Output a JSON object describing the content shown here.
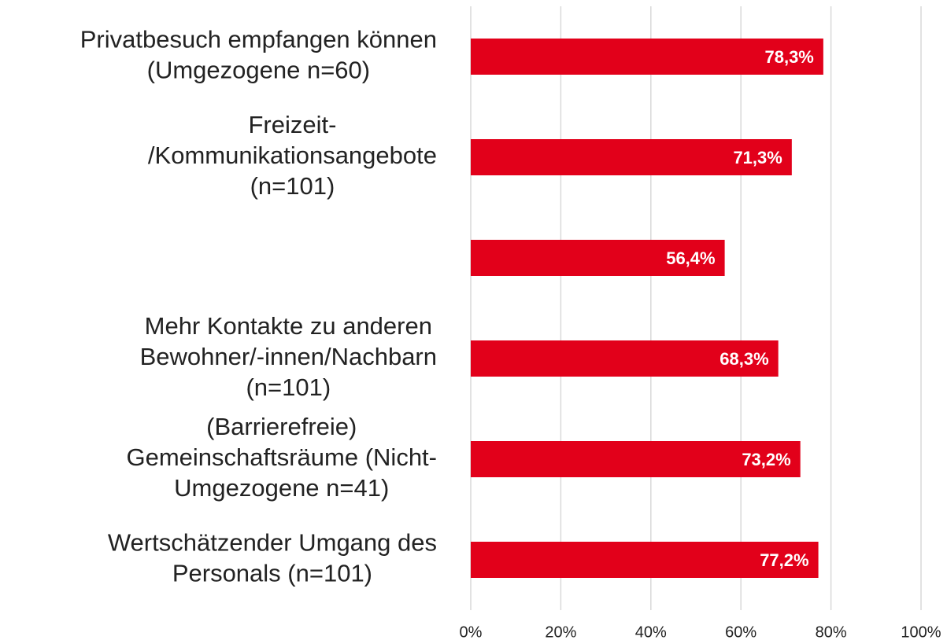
{
  "chart_data": {
    "type": "bar",
    "orientation": "horizontal",
    "categories": [
      [
        "Privatbesuch empfangen können",
        "(Umgezogene n=60)"
      ],
      [
        "Freizeit-",
        "/Kommunikationsangebote",
        "(n=101)"
      ],
      null,
      [
        "Mehr Kontakte zu anderen",
        "Bewohner/-innen/Nachbarn",
        "(n=101)"
      ],
      [
        "(Barrierefreie)",
        "Gemeinschaftsräume (Nicht-",
        "Umgezogene n=41)"
      ],
      [
        "Wertschätzender Umgang des",
        "Personals (n=101)"
      ]
    ],
    "values": [
      78.3,
      71.3,
      56.4,
      68.3,
      73.2,
      77.2
    ],
    "value_labels": [
      "78,3%",
      "71,3%",
      "56,4%",
      "68,3%",
      "73,2%",
      "77,2%"
    ],
    "color": "#e2001a",
    "xlim": [
      0,
      100
    ],
    "xticks": [
      {
        "value": 0,
        "label": "0%"
      },
      {
        "value": 20,
        "label": "20%"
      },
      {
        "value": 40,
        "label": "40%"
      },
      {
        "value": 60,
        "label": "60%"
      },
      {
        "value": 80,
        "label": "80%"
      },
      {
        "value": 100,
        "label": "100%"
      }
    ],
    "grid": true
  }
}
